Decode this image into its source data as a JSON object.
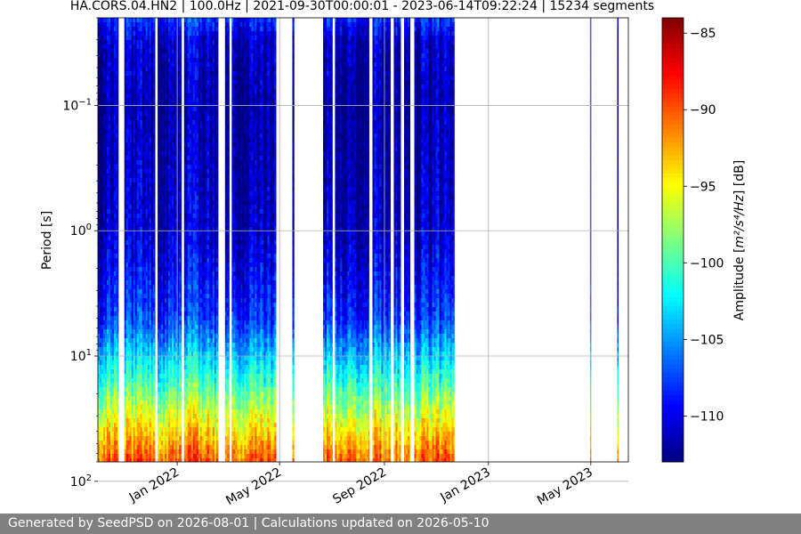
{
  "chart_data": {
    "type": "heatmap",
    "title": "HA.CORS.04.HN2 | 100.0Hz | 2021-09-30T00:00:01 - 2023-06-14T09:22:24 | 15234 segments",
    "ylabel": "Period [s]",
    "y_scale": "log",
    "y_inverted": true,
    "ylim": [
      0.02,
      70
    ],
    "y_ticks": [
      {
        "value": 0.1,
        "label_base": "10",
        "label_exp": "−1"
      },
      {
        "value": 1,
        "label_base": "10",
        "label_exp": "0"
      },
      {
        "value": 10,
        "label_base": "10",
        "label_exp": "1"
      },
      {
        "value": 100,
        "label_base": "10",
        "label_exp": "2"
      }
    ],
    "x_type": "date",
    "xlim": [
      "2021-09-30",
      "2023-06-14"
    ],
    "x_ticks": [
      {
        "date": "2022-01-01",
        "label": "Jan 2022"
      },
      {
        "date": "2022-05-01",
        "label": "May 2022"
      },
      {
        "date": "2022-09-01",
        "label": "Sep 2022"
      },
      {
        "date": "2023-01-01",
        "label": "Jan 2023"
      },
      {
        "date": "2023-05-01",
        "label": "May 2023"
      }
    ],
    "grid": true,
    "colormap": "jet",
    "colorbar": {
      "label_prefix": "Amplitude [",
      "label_math": "m²/s⁴/Hz",
      "label_suffix": "] [dB]",
      "range": [
        -113,
        -84
      ],
      "ticks": [
        {
          "value": -85,
          "label": "−85"
        },
        {
          "value": -90,
          "label": "−90"
        },
        {
          "value": -95,
          "label": "−95"
        },
        {
          "value": -100,
          "label": "−100"
        },
        {
          "value": -105,
          "label": "−105"
        },
        {
          "value": -110,
          "label": "−110"
        }
      ]
    },
    "data_spans": [
      {
        "start": "2021-09-30",
        "end": "2021-10-24"
      },
      {
        "start": "2021-10-31",
        "end": "2021-12-06"
      },
      {
        "start": "2021-12-09",
        "end": "2022-01-06"
      },
      {
        "start": "2022-01-09",
        "end": "2022-02-18"
      },
      {
        "start": "2022-02-26",
        "end": "2022-03-03"
      },
      {
        "start": "2022-03-06",
        "end": "2022-04-27"
      },
      {
        "start": "2022-05-16",
        "end": "2022-05-18"
      },
      {
        "start": "2022-06-21",
        "end": "2022-07-02"
      },
      {
        "start": "2022-07-05",
        "end": "2022-08-14"
      },
      {
        "start": "2022-08-18",
        "end": "2022-09-08"
      },
      {
        "start": "2022-09-12",
        "end": "2022-09-20"
      },
      {
        "start": "2022-09-24",
        "end": "2022-10-01"
      },
      {
        "start": "2022-10-06",
        "end": "2022-11-22"
      },
      {
        "start": "2023-04-30",
        "end": "2023-05-01"
      },
      {
        "start": "2023-06-01",
        "end": "2023-06-02"
      }
    ],
    "spectrum_profile": [
      {
        "period": 0.02,
        "amplitude": -108
      },
      {
        "period": 0.03,
        "amplitude": -111
      },
      {
        "period": 0.1,
        "amplitude": -112
      },
      {
        "period": 1,
        "amplitude": -111
      },
      {
        "period": 5,
        "amplitude": -108
      },
      {
        "period": 15,
        "amplitude": -101
      },
      {
        "period": 30,
        "amplitude": -96
      },
      {
        "period": 60,
        "amplitude": -91
      },
      {
        "period": 100,
        "amplitude": -88
      },
      {
        "period": 70,
        "amplitude": -85
      }
    ]
  },
  "footer": {
    "text": "Generated by SeedPSD on 2026-08-01 | Calculations updated on 2026-05-10"
  }
}
